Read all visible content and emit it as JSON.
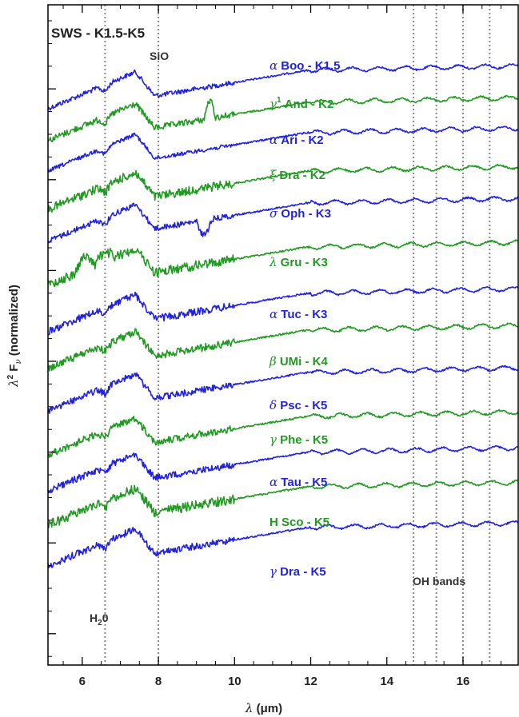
{
  "chart_data": {
    "type": "line",
    "title": "SWS - K1.5-K5",
    "xlabel_greek": "λ",
    "xlabel_text": "(μm)",
    "ylabel_greek": "λ",
    "ylabel_sup": "2",
    "ylabel_text": "F",
    "ylabel_sub": "ν",
    "ylabel_rest": "(normalized)",
    "xlim": [
      5.1,
      17.45
    ],
    "x_ticks": [
      "6",
      "8",
      "10",
      "12",
      "14",
      "16"
    ],
    "x_tick_values": [
      6,
      8,
      10,
      12,
      14,
      16
    ],
    "feature_lines": [
      6.6,
      8.0,
      14.7,
      15.3,
      16.0,
      16.7
    ],
    "annotations": {
      "sio": "SiO",
      "h2o": "H",
      "h2o_sub": "2",
      "h2o_tail": "0",
      "oh": "OH bands"
    },
    "colors": {
      "blue": "#2222dd",
      "green": "#229922"
    },
    "series": [
      {
        "greek": "α",
        "name": " Boo - K1.5",
        "color": "blue"
      },
      {
        "greek": "γ",
        "sup": "1",
        "name": " And - K2",
        "color": "green"
      },
      {
        "greek": "α",
        "name": " Ari - K2",
        "color": "blue"
      },
      {
        "greek": "ξ",
        "name": " Dra - K2",
        "color": "green"
      },
      {
        "greek": "σ",
        "name": " Oph - K3",
        "color": "blue"
      },
      {
        "greek": "λ",
        "name": " Gru - K3",
        "color": "green"
      },
      {
        "greek": "α",
        "name": " Tuc - K3",
        "color": "blue"
      },
      {
        "greek": "β",
        "name": " UMi - K4",
        "color": "green"
      },
      {
        "greek": "δ",
        "name": " Psc - K5",
        "color": "blue"
      },
      {
        "greek": "γ",
        "name": " Phe - K5",
        "color": "green"
      },
      {
        "greek": "α",
        "name": " Tau - K5",
        "color": "blue"
      },
      {
        "greek": "",
        "name": "H Sco - K5",
        "color": "green"
      },
      {
        "greek": "γ",
        "name": " Dra - K5",
        "color": "blue"
      }
    ]
  }
}
